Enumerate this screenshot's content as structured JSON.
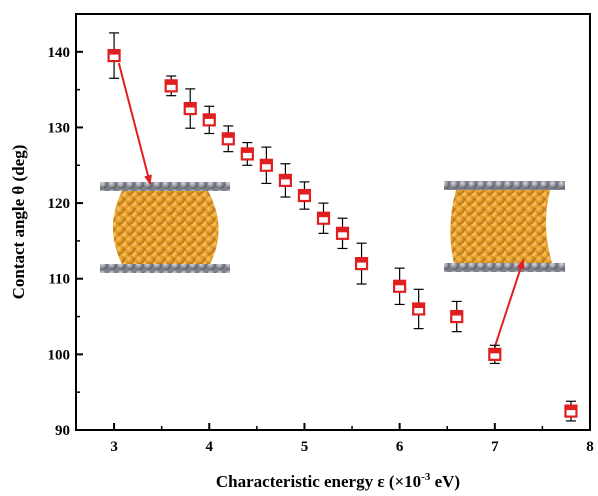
{
  "chart_data": {
    "type": "scatter",
    "title": "",
    "xlabel": "Characteristic energy ε  (×10",
    "xlabel_sup": "-3",
    "xlabel_tail": " eV)",
    "ylabel": "Contact angle θ (deg)",
    "xlim": [
      2.6,
      8.0
    ],
    "ylim": [
      90,
      145
    ],
    "x_ticks": [
      3,
      4,
      5,
      6,
      7,
      8
    ],
    "y_ticks": [
      90,
      100,
      110,
      120,
      130,
      140
    ],
    "grid": false,
    "legend": "none",
    "series": [
      {
        "marker": "open-square",
        "color": "#e02020",
        "points": [
          {
            "x": 3.0,
            "y": 139.5,
            "err": 3.0
          },
          {
            "x": 3.6,
            "y": 135.5,
            "err": 1.3
          },
          {
            "x": 3.8,
            "y": 132.5,
            "err": 2.6
          },
          {
            "x": 4.0,
            "y": 131.0,
            "err": 1.8
          },
          {
            "x": 4.2,
            "y": 128.5,
            "err": 1.7
          },
          {
            "x": 4.4,
            "y": 126.5,
            "err": 1.5
          },
          {
            "x": 4.6,
            "y": 125.0,
            "err": 2.4
          },
          {
            "x": 4.8,
            "y": 123.0,
            "err": 2.2
          },
          {
            "x": 5.0,
            "y": 121.0,
            "err": 1.8
          },
          {
            "x": 5.2,
            "y": 118.0,
            "err": 2.0
          },
          {
            "x": 5.4,
            "y": 116.0,
            "err": 2.0
          },
          {
            "x": 5.6,
            "y": 112.0,
            "err": 2.7
          },
          {
            "x": 6.0,
            "y": 109.0,
            "err": 2.4
          },
          {
            "x": 6.2,
            "y": 106.0,
            "err": 2.6
          },
          {
            "x": 6.6,
            "y": 105.0,
            "err": 2.0
          },
          {
            "x": 7.0,
            "y": 100.0,
            "err": 1.2
          },
          {
            "x": 7.8,
            "y": 92.5,
            "err": 1.3
          }
        ]
      }
    ],
    "annotations": [
      {
        "type": "arrow",
        "color": "#e02020",
        "from": {
          "x": 3.05,
          "y": 138.5
        },
        "to": {
          "x": 3.38,
          "y": 122.5
        }
      },
      {
        "type": "arrow",
        "color": "#e02020",
        "from": {
          "x": 7.0,
          "y": 101.0
        },
        "to": {
          "x": 7.3,
          "y": 112.5
        }
      }
    ],
    "insets": [
      {
        "name": "droplet-simulation-hydrophobic",
        "description_color": "#e8a020"
      },
      {
        "name": "droplet-simulation-hydrophilic",
        "description_color": "#e8a020"
      }
    ]
  }
}
